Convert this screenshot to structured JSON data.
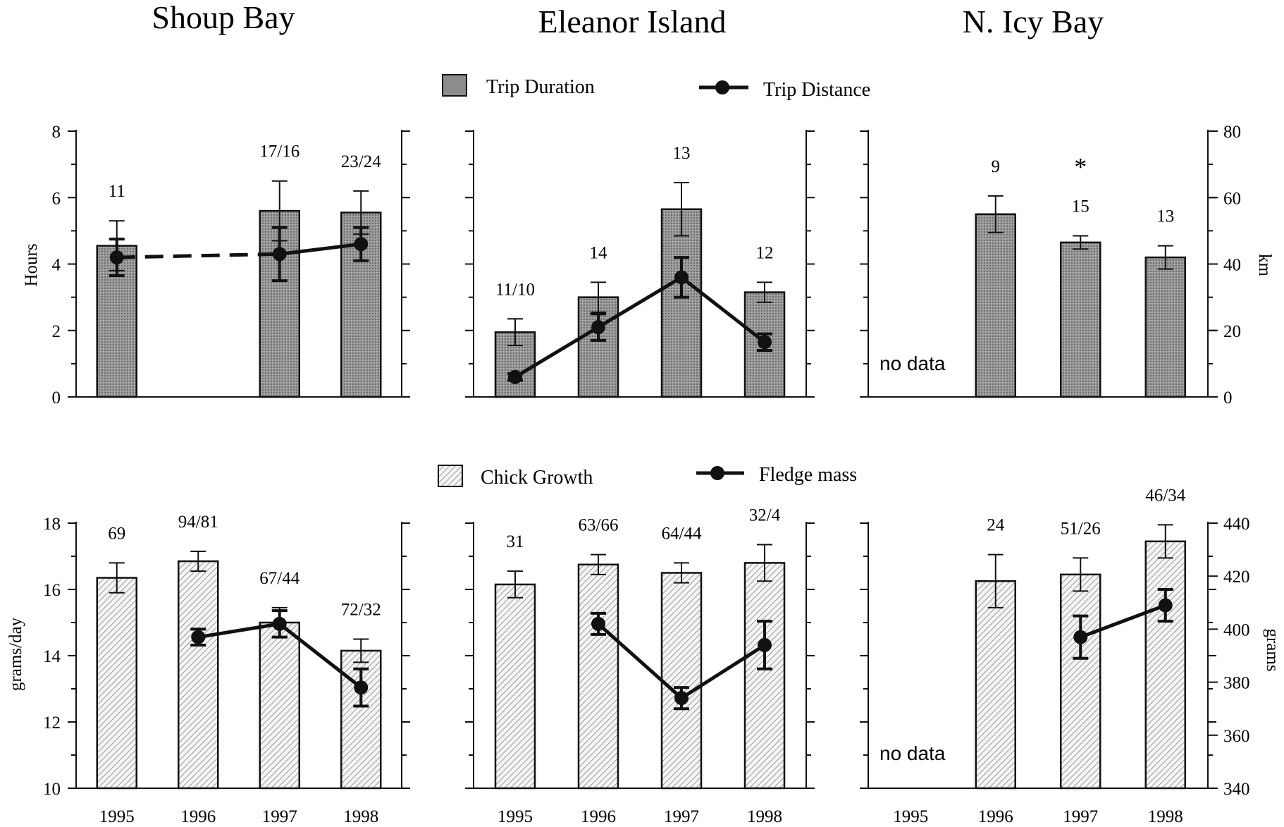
{
  "columns": [
    "Shoup Bay",
    "Eleanor Island",
    "N. Icy Bay"
  ],
  "legend_top": {
    "bar": "Trip Duration",
    "line": "Trip Distance"
  },
  "legend_bottom": {
    "bar": "Chick Growth",
    "line": "Fledge mass"
  },
  "top_left_axis_label": "Hours",
  "top_right_axis_label": "km",
  "bottom_left_axis_label": "grams/day",
  "bottom_right_axis_label": "grams",
  "x_categories": [
    "1995",
    "1996",
    "1997",
    "1998"
  ],
  "no_data_text": "no data",
  "colors": {
    "bar_top": "#8c8c8c",
    "bar_bottom": "#d8d8d8",
    "line": "#111111"
  },
  "chart_data": [
    {
      "type": "bar",
      "site": "Shoup Bay",
      "row": "top",
      "left_ylim": [
        0,
        8
      ],
      "left_yticks": [
        "0",
        "2",
        "4",
        "6",
        "8"
      ],
      "right_ylim": [
        0,
        80
      ],
      "bars": [
        {
          "cat": "1995",
          "value": 4.55,
          "err": 0.75,
          "label": "11"
        },
        {
          "cat": "1996",
          "value": null
        },
        {
          "cat": "1997",
          "value": 5.6,
          "err": 0.9,
          "label": "17/16"
        },
        {
          "cat": "1998",
          "value": 5.55,
          "err": 0.65,
          "label": "23/24"
        }
      ],
      "line": [
        {
          "cat": "1995",
          "value": 42,
          "err": 5.5
        },
        {
          "cat": "1996",
          "value": null
        },
        {
          "cat": "1997",
          "value": 43,
          "err": 8
        },
        {
          "cat": "1998",
          "value": 46,
          "err": 5
        }
      ],
      "line_gap_dashed": true
    },
    {
      "type": "bar",
      "site": "Eleanor Island",
      "row": "top",
      "left_ylim": [
        0,
        8
      ],
      "right_ylim": [
        0,
        80
      ],
      "bars": [
        {
          "cat": "1995",
          "value": 1.95,
          "err": 0.4,
          "label": "11/10"
        },
        {
          "cat": "1996",
          "value": 3.0,
          "err": 0.45,
          "label": "14"
        },
        {
          "cat": "1997",
          "value": 5.65,
          "err": 0.8,
          "label": "13"
        },
        {
          "cat": "1998",
          "value": 3.15,
          "err": 0.3,
          "label": "12"
        }
      ],
      "line": [
        {
          "cat": "1995",
          "value": 6,
          "err": 1
        },
        {
          "cat": "1996",
          "value": 21,
          "err": 4
        },
        {
          "cat": "1997",
          "value": 36,
          "err": 6
        },
        {
          "cat": "1998",
          "value": 16.5,
          "err": 2.5
        }
      ]
    },
    {
      "type": "bar",
      "site": "N. Icy Bay",
      "row": "top",
      "left_ylim": [
        0,
        8
      ],
      "right_ylim": [
        0,
        80
      ],
      "right_yticks": [
        "0",
        "20",
        "40",
        "60",
        "80"
      ],
      "bars": [
        {
          "cat": "1995",
          "value": null
        },
        {
          "cat": "1996",
          "value": 5.5,
          "err": 0.55,
          "label": "9"
        },
        {
          "cat": "1997",
          "value": 4.65,
          "err": 0.2,
          "label": "15",
          "mark": "*"
        },
        {
          "cat": "1998",
          "value": 4.2,
          "err": 0.35,
          "label": "13"
        }
      ],
      "line": [],
      "no_data": true
    },
    {
      "type": "bar",
      "site": "Shoup Bay",
      "row": "bottom",
      "left_ylim": [
        10,
        18
      ],
      "left_yticks": [
        "10",
        "12",
        "14",
        "16",
        "18"
      ],
      "right_ylim": [
        340,
        440
      ],
      "bars": [
        {
          "cat": "1995",
          "value": 16.35,
          "err": 0.45,
          "label": "69"
        },
        {
          "cat": "1996",
          "value": 16.85,
          "err": 0.3,
          "label": "94/81"
        },
        {
          "cat": "1997",
          "value": 15.0,
          "err": 0.45,
          "label": "67/44"
        },
        {
          "cat": "1998",
          "value": 14.15,
          "err": 0.35,
          "label": "72/32"
        }
      ],
      "line": [
        {
          "cat": "1995",
          "value": null
        },
        {
          "cat": "1996",
          "value": 397,
          "err": 3
        },
        {
          "cat": "1997",
          "value": 402,
          "err": 5
        },
        {
          "cat": "1998",
          "value": 378,
          "err": 7
        }
      ]
    },
    {
      "type": "bar",
      "site": "Eleanor Island",
      "row": "bottom",
      "left_ylim": [
        10,
        18
      ],
      "right_ylim": [
        340,
        440
      ],
      "bars": [
        {
          "cat": "1995",
          "value": 16.15,
          "err": 0.4,
          "label": "31"
        },
        {
          "cat": "1996",
          "value": 16.75,
          "err": 0.3,
          "label": "63/66"
        },
        {
          "cat": "1997",
          "value": 16.5,
          "err": 0.3,
          "label": "64/44"
        },
        {
          "cat": "1998",
          "value": 16.8,
          "err": 0.55,
          "label": "32/4"
        }
      ],
      "line": [
        {
          "cat": "1995",
          "value": null
        },
        {
          "cat": "1996",
          "value": 402,
          "err": 4
        },
        {
          "cat": "1997",
          "value": 374,
          "err": 4
        },
        {
          "cat": "1998",
          "value": 394,
          "err": 9
        }
      ]
    },
    {
      "type": "bar",
      "site": "N. Icy Bay",
      "row": "bottom",
      "left_ylim": [
        10,
        18
      ],
      "right_ylim": [
        340,
        440
      ],
      "right_yticks": [
        "340",
        "360",
        "380",
        "400",
        "420",
        "440"
      ],
      "bars": [
        {
          "cat": "1995",
          "value": null
        },
        {
          "cat": "1996",
          "value": 16.25,
          "err": 0.8,
          "label": "24"
        },
        {
          "cat": "1997",
          "value": 16.45,
          "err": 0.5,
          "label": "51/26"
        },
        {
          "cat": "1998",
          "value": 17.45,
          "err": 0.5,
          "label": "46/34"
        }
      ],
      "line": [
        {
          "cat": "1995",
          "value": null
        },
        {
          "cat": "1996",
          "value": null
        },
        {
          "cat": "1997",
          "value": 397,
          "err": 8
        },
        {
          "cat": "1998",
          "value": 409,
          "err": 6
        }
      ],
      "no_data": true
    }
  ]
}
